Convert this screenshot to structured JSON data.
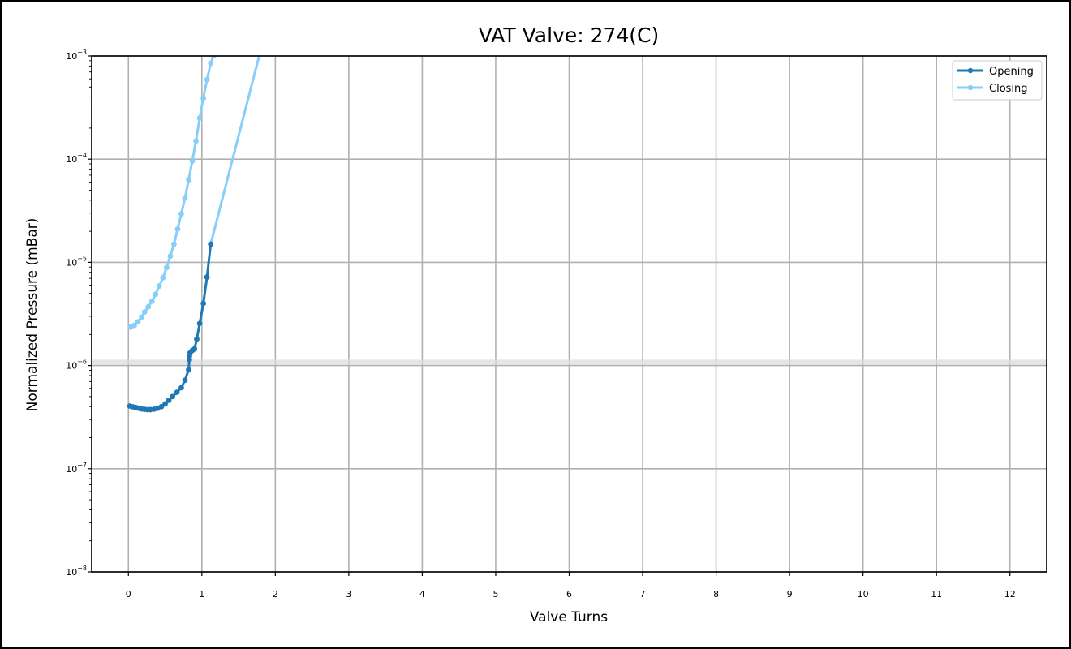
{
  "chart_data": {
    "type": "line",
    "title": "VAT Valve: 274(C)",
    "xlabel": "Valve Turns",
    "ylabel": "Normalized Pressure (mBar)",
    "x_ticks": [
      0,
      1,
      2,
      3,
      4,
      5,
      6,
      7,
      8,
      9,
      10,
      11,
      12
    ],
    "x_tick_labels": [
      "0",
      "1",
      "2",
      "3",
      "4",
      "5",
      "6",
      "7",
      "8",
      "9",
      "10",
      "11",
      "12"
    ],
    "xlim": [
      -0.5,
      12.5
    ],
    "y_scale": "log",
    "ylim": [
      1e-08,
      0.001
    ],
    "y_ticks": [
      1e-08,
      1e-07,
      1e-06,
      1e-05,
      0.0001,
      0.001
    ],
    "y_tick_labels": [
      {
        "base": "10",
        "exp": "−8"
      },
      {
        "base": "10",
        "exp": "−7"
      },
      {
        "base": "10",
        "exp": "−6"
      },
      {
        "base": "10",
        "exp": "−5"
      },
      {
        "base": "10",
        "exp": "−4"
      },
      {
        "base": "10",
        "exp": "−3"
      }
    ],
    "grid": true,
    "legend_position": "top-right",
    "reference_band": {
      "y": 1.08e-06,
      "color": "#dcdcdc"
    },
    "series": [
      {
        "name": "Opening",
        "color": "#1f77b4",
        "points": [
          [
            0.02,
            4.05e-07
          ],
          [
            0.06,
            3.98e-07
          ],
          [
            0.1,
            3.92e-07
          ],
          [
            0.14,
            3.86e-07
          ],
          [
            0.18,
            3.8e-07
          ],
          [
            0.22,
            3.76e-07
          ],
          [
            0.26,
            3.74e-07
          ],
          [
            0.3,
            3.74e-07
          ],
          [
            0.35,
            3.78e-07
          ],
          [
            0.4,
            3.86e-07
          ],
          [
            0.45,
            4e-07
          ],
          [
            0.5,
            4.25e-07
          ],
          [
            0.55,
            4.6e-07
          ],
          [
            0.6,
            5e-07
          ],
          [
            0.66,
            5.5e-07
          ],
          [
            0.72,
            6.1e-07
          ],
          [
            0.77,
            7.2e-07
          ],
          [
            0.82,
            9.1e-07
          ],
          [
            0.83,
            1.14e-06
          ],
          [
            0.83,
            1.23e-06
          ],
          [
            0.84,
            1.33e-06
          ],
          [
            0.87,
            1.4e-06
          ],
          [
            0.9,
            1.45e-06
          ],
          [
            0.93,
            1.8e-06
          ],
          [
            0.97,
            2.55e-06
          ],
          [
            1.02,
            4e-06
          ],
          [
            1.07,
            7.2e-06
          ],
          [
            1.12,
            1.5e-05
          ]
        ]
      },
      {
        "name": "Closing",
        "color": "#87cefa",
        "points": [
          [
            0.03,
            2.35e-06
          ],
          [
            0.08,
            2.45e-06
          ],
          [
            0.13,
            2.65e-06
          ],
          [
            0.18,
            2.95e-06
          ],
          [
            0.22,
            3.3e-06
          ],
          [
            0.27,
            3.7e-06
          ],
          [
            0.32,
            4.2e-06
          ],
          [
            0.37,
            4.9e-06
          ],
          [
            0.42,
            5.9e-06
          ],
          [
            0.47,
            7.1e-06
          ],
          [
            0.52,
            8.9e-06
          ],
          [
            0.57,
            1.15e-05
          ],
          [
            0.62,
            1.5e-05
          ],
          [
            0.67,
            2.1e-05
          ],
          [
            0.72,
            2.95e-05
          ],
          [
            0.77,
            4.2e-05
          ],
          [
            0.82,
            6.3e-05
          ],
          [
            0.87,
            9.6e-05
          ],
          [
            0.92,
            0.00015
          ],
          [
            0.97,
            0.00025
          ],
          [
            1.02,
            0.00039
          ],
          [
            1.07,
            0.00059
          ],
          [
            1.12,
            0.00085
          ],
          [
            1.16,
            0.001
          ]
        ],
        "line_only_points": [
          [
            1.12,
            1.5e-05
          ],
          [
            1.78,
            0.001
          ]
        ]
      }
    ]
  }
}
